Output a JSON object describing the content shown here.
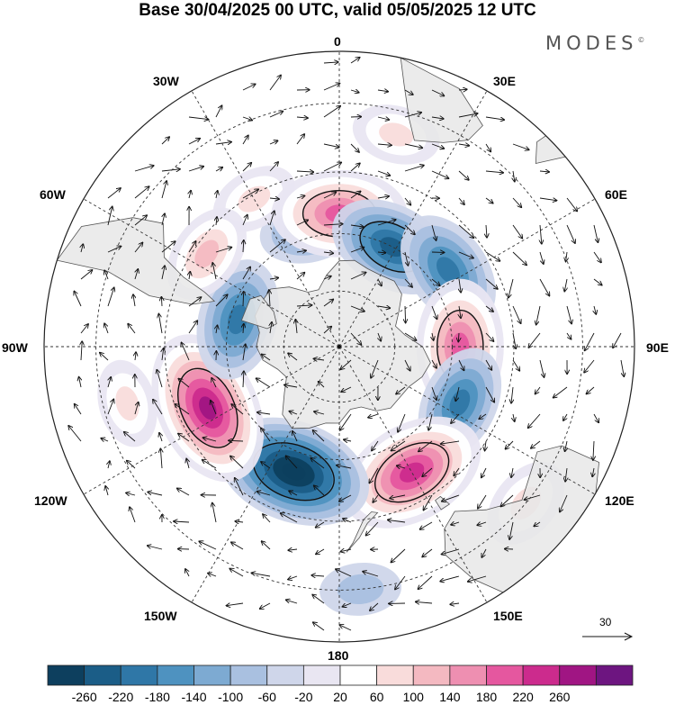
{
  "title": "Base 30/04/2025 00 UTC, valid 05/05/2025 12 UTC",
  "brand": "MODES",
  "brand_mark": "©",
  "longitude_labels": {
    "lon_0": "0",
    "lon_30e": "30E",
    "lon_60e": "60E",
    "lon_90e": "90E",
    "lon_120e": "120E",
    "lon_150e": "150E",
    "lon_180": "180",
    "lon_150w": "150W",
    "lon_120w": "120W",
    "lon_90w": "90W",
    "lon_60w": "60W",
    "lon_30w": "30W"
  },
  "wind_scale": {
    "label": "30"
  },
  "colorbar": {
    "ticks": [
      "-260",
      "-220",
      "-180",
      "-140",
      "-100",
      "-60",
      "-20",
      "20",
      "60",
      "100",
      "140",
      "180",
      "220",
      "260"
    ],
    "colors": [
      "#0d3f5e",
      "#1b5d87",
      "#2f77a7",
      "#4e92c0",
      "#7daad2",
      "#a9c0e0",
      "#cfd6ea",
      "#e9e6f2",
      "#ffffff",
      "#f9dcdb",
      "#f4b9c1",
      "#ee8fb1",
      "#e5579f",
      "#cc2b8d",
      "#a01583",
      "#6d1580"
    ]
  },
  "colors": {
    "land": "#e7e7e7",
    "grid": "#333333",
    "coast": "#555555"
  },
  "anomaly_centers": [
    {
      "lon": 15,
      "lat": -35,
      "value": 60
    },
    {
      "lon": -14,
      "lat": -58,
      "value": -100
    },
    {
      "lon": -30,
      "lat": -46,
      "value": 60
    },
    {
      "lon": 0,
      "lat": -55,
      "value": 200
    },
    {
      "lon": 28,
      "lat": -60,
      "value": -180
    },
    {
      "lon": 55,
      "lat": -55,
      "value": -160
    },
    {
      "lon": 90,
      "lat": -58,
      "value": 200
    },
    {
      "lon": 115,
      "lat": -55,
      "value": -140
    },
    {
      "lon": 150,
      "lat": -52,
      "value": 240
    },
    {
      "lon": -160,
      "lat": -55,
      "value": -260
    },
    {
      "lon": -115,
      "lat": -52,
      "value": 260
    },
    {
      "lon": -75,
      "lat": -62,
      "value": -160
    },
    {
      "lon": -55,
      "lat": -48,
      "value": 100
    },
    {
      "lon": 130,
      "lat": -30,
      "value": 80
    },
    {
      "lon": -105,
      "lat": -35,
      "value": 60
    },
    {
      "lon": 175,
      "lat": -30,
      "value": -40
    }
  ]
}
